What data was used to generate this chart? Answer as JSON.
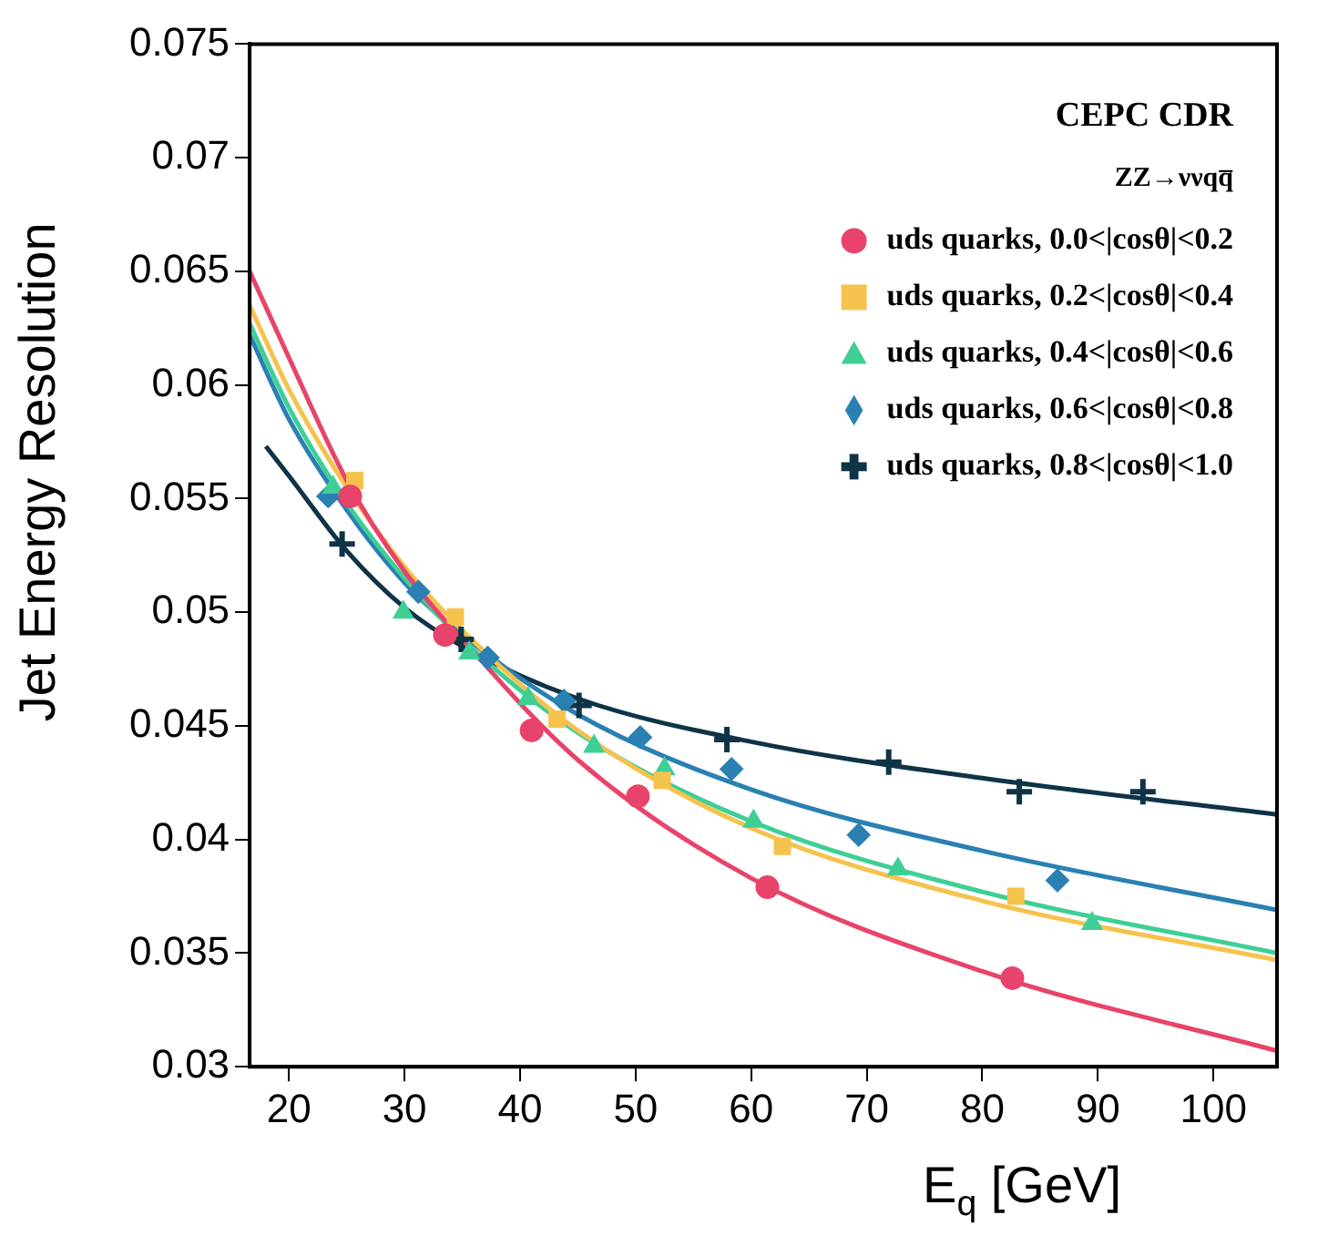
{
  "chart_data": {
    "type": "scatter",
    "xlabel": "E$_{q}$ [GeV]",
    "ylabel": "Jet Energy Resolution",
    "annotations": [
      "CEPC CDR",
      "ZZ→ννqq̅"
    ],
    "xlim": [
      16.6,
      105.5
    ],
    "xticks": [
      20,
      30,
      40,
      50,
      60,
      70,
      80,
      90,
      100
    ],
    "ylim": [
      0.03,
      0.075
    ],
    "yticks": [
      0.03,
      0.035,
      0.04,
      0.045,
      0.05,
      0.055,
      0.06,
      0.065,
      0.07,
      0.075
    ],
    "grid": false,
    "legend": "top right",
    "series": [
      {
        "name": "uds quarks, 0.0<|cosθ|<0.2",
        "color": "#e8436a",
        "marker": "circle",
        "x": [
          25.3,
          33.5,
          41,
          50.2,
          61.4,
          82.6
        ],
        "values": [
          0.0551,
          0.049,
          0.0448,
          0.0419,
          0.0379,
          0.0339
        ]
      },
      {
        "name": "uds quarks, 0.2<|cosθ|<0.4",
        "color": "#f6c24e",
        "marker": "square",
        "x": [
          25.7,
          34.4,
          43.2,
          52.3,
          62.7,
          82.9
        ],
        "values": [
          0.0558,
          0.0498,
          0.0453,
          0.0426,
          0.0397,
          0.0375
        ]
      },
      {
        "name": "uds quarks, 0.4<|cosθ|<0.6",
        "color": "#3ecf95",
        "marker": "triangle",
        "x": [
          23.8,
          29.9,
          35.6,
          40.7,
          46.4,
          52.5,
          60.2,
          72.7,
          89.5
        ],
        "values": [
          0.0555,
          0.05,
          0.0482,
          0.0462,
          0.0441,
          0.0431,
          0.0408,
          0.0387,
          0.0363
        ]
      },
      {
        "name": "uds quarks, 0.6<|cosθ|<0.8",
        "color": "#2a80b2",
        "marker": "diamond",
        "x": [
          23.4,
          31.2,
          37.2,
          43.8,
          50.4,
          58.3,
          69.3,
          86.5
        ],
        "values": [
          0.0551,
          0.0509,
          0.048,
          0.0461,
          0.0445,
          0.0431,
          0.0402,
          0.0382
        ]
      },
      {
        "name": "uds quarks, 0.8<|cosθ|<1.0",
        "color": "#0f3347",
        "marker": "cross",
        "x": [
          24.6,
          34.9,
          45.1,
          57.9,
          71.9,
          83.2,
          93.9
        ],
        "values": [
          0.053,
          0.0488,
          0.0459,
          0.0444,
          0.0434,
          0.0421,
          0.0421
        ]
      },
      {
        "type": "line",
        "color": "#e8436a",
        "marker": "none",
        "x": [
          16.6,
          20,
          25,
          30,
          35,
          45,
          60,
          80,
          105.5
        ],
        "values": [
          0.065,
          0.0612,
          0.0558,
          0.0518,
          0.0488,
          0.0435,
          0.0383,
          0.0342,
          0.0307
        ]
      },
      {
        "type": "line",
        "color": "#f6c24e",
        "marker": "none",
        "x": [
          16.6,
          20,
          25,
          30,
          35,
          45,
          60,
          80,
          105.5
        ],
        "values": [
          0.0635,
          0.0598,
          0.0555,
          0.052,
          0.0492,
          0.0448,
          0.0405,
          0.0373,
          0.0347
        ]
      },
      {
        "type": "line",
        "color": "#3ecf95",
        "marker": "none",
        "x": [
          16.6,
          20,
          25,
          30,
          35,
          45,
          60,
          80,
          105.5
        ],
        "values": [
          0.0627,
          0.059,
          0.0548,
          0.0515,
          0.0488,
          0.0447,
          0.0408,
          0.0377,
          0.035
        ]
      },
      {
        "type": "line",
        "color": "#2a80b2",
        "marker": "none",
        "x": [
          16.6,
          20,
          25,
          30,
          35,
          45,
          60,
          80,
          105.5
        ],
        "values": [
          0.0622,
          0.0585,
          0.0545,
          0.0513,
          0.049,
          0.0455,
          0.0422,
          0.0395,
          0.0369
        ]
      },
      {
        "type": "line",
        "color": "#0f3347",
        "marker": "none",
        "x": [
          18,
          20,
          25,
          30,
          35,
          45,
          60,
          80,
          105.5
        ],
        "values": [
          0.0573,
          0.056,
          0.0527,
          0.0502,
          0.0485,
          0.0462,
          0.0443,
          0.0427,
          0.0411
        ]
      }
    ]
  }
}
